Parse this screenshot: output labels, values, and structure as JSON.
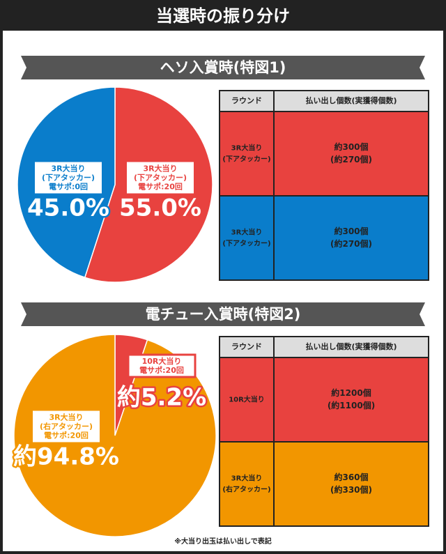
{
  "header": {
    "title": "当選時の振り分け"
  },
  "chart_data": [
    {
      "type": "pie",
      "title": "ヘソ入賞時(特図1)",
      "categories": [
        [
          "3R大当り",
          "(下アタッカー)",
          "電サポ:20回"
        ],
        [
          "3R大当り",
          "(下アタッカー)",
          "電サポ:0回"
        ]
      ],
      "values": [
        55.0,
        45.0
      ],
      "value_labels": [
        "55.0%",
        "45.0%"
      ],
      "colors": [
        "#e8423f",
        "#0a7dcb"
      ]
    },
    {
      "type": "pie",
      "title": "電チュー入賞時(特図2)",
      "categories": [
        [
          "10R大当り",
          "電サポ:20回"
        ],
        [
          "3R大当り",
          "(右アタッカー)",
          "電サポ:20回"
        ]
      ],
      "values": [
        5.2,
        94.8
      ],
      "value_labels": [
        "約5.2%",
        "約94.8%"
      ],
      "colors": [
        "#e8423f",
        "#f29600"
      ]
    }
  ],
  "tables": [
    {
      "header": [
        "ラウンド",
        "払い出し個数(実獲得個数)"
      ],
      "rows": [
        [
          [
            "3R大当り",
            "(下アタッカー)"
          ],
          [
            "約300個",
            "(約270個)"
          ]
        ],
        [
          [
            "3R大当り",
            "(下アタッカー)"
          ],
          [
            "約300個",
            "(約270個)"
          ]
        ]
      ],
      "row_colors": [
        "#e8423f",
        "#0a7dcb"
      ]
    },
    {
      "header": [
        "ラウンド",
        "払い出し個数(実獲得個数)"
      ],
      "rows": [
        [
          [
            "10R大当り"
          ],
          [
            "約1200個",
            "(約1100個)"
          ]
        ],
        [
          [
            "3R大当り",
            "(右アタッカー)"
          ],
          [
            "約360個",
            "(約330個)"
          ]
        ]
      ],
      "row_colors": [
        "#e8423f",
        "#f29600"
      ]
    }
  ],
  "footnote": "※大当り出玉は払い出しで表記"
}
